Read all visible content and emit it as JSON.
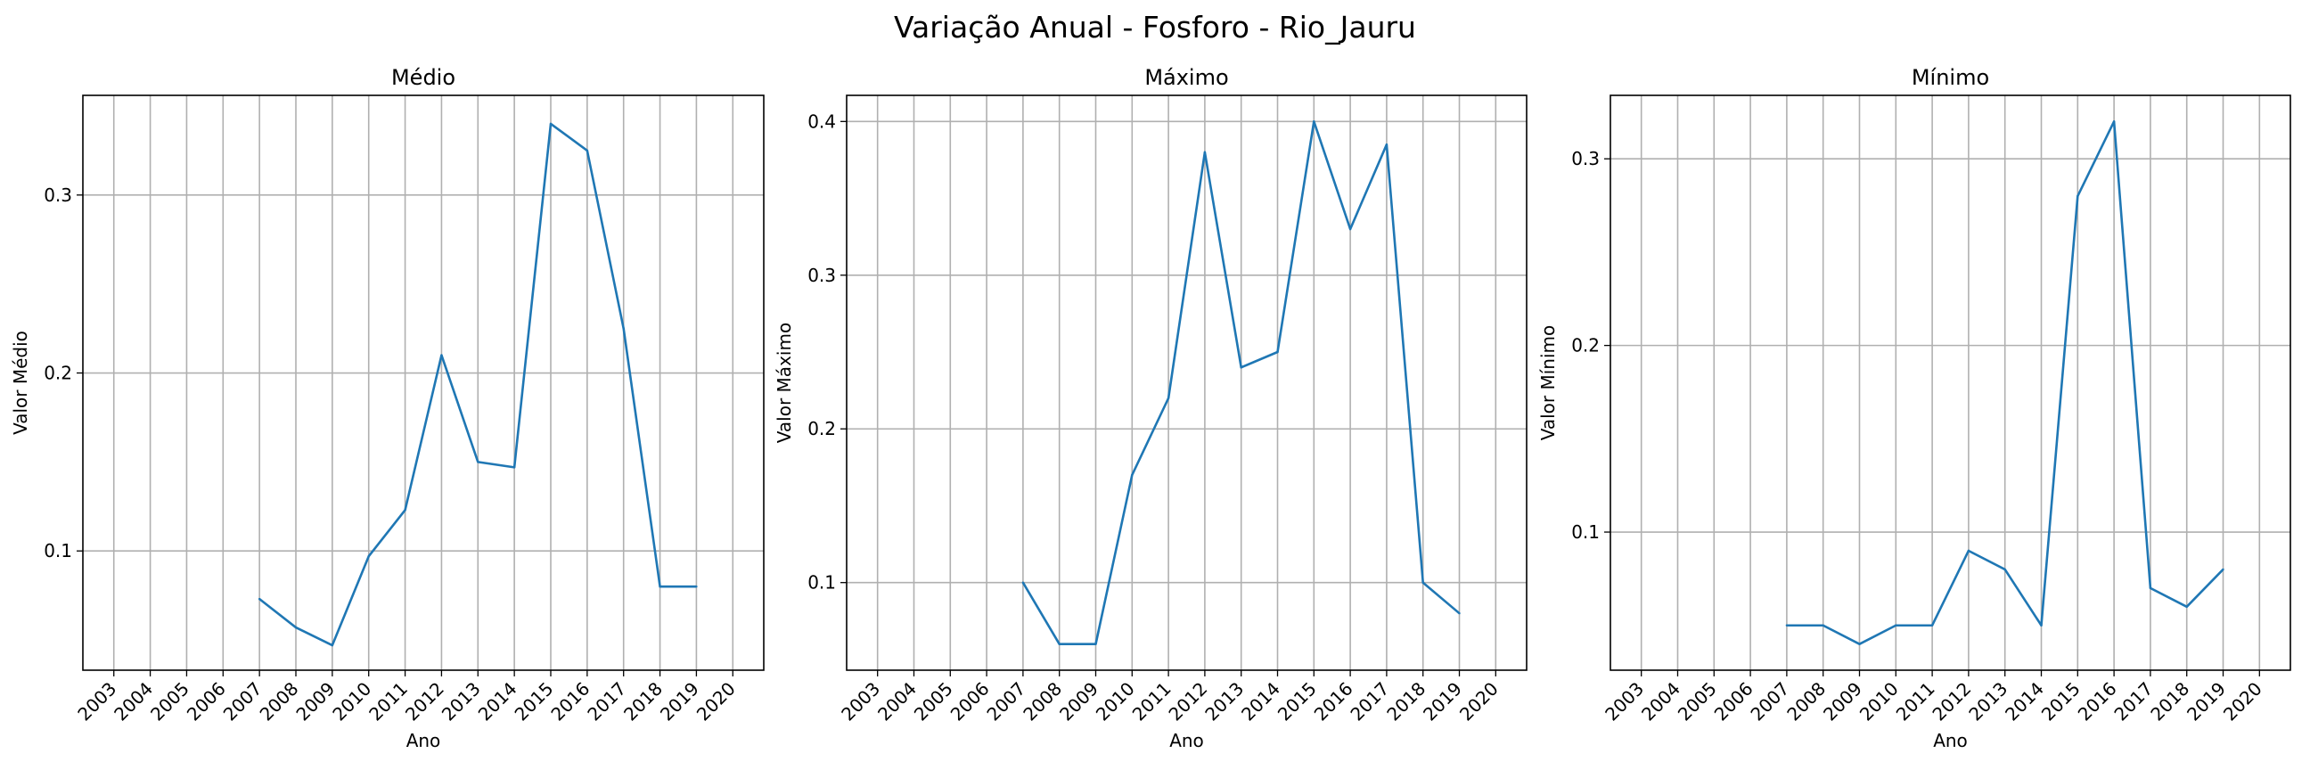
{
  "figure": {
    "suptitle": "Variação Anual - Fosforo - Rio_Jauru"
  },
  "colors": {
    "line": "#1f77b4",
    "grid": "#b0b0b0",
    "axes": "#000000"
  },
  "chart_data": [
    {
      "type": "line",
      "title": "Médio",
      "xlabel": "Ano",
      "ylabel": "Valor Médio",
      "grid": true,
      "categories": [
        "2003",
        "2004",
        "2005",
        "2006",
        "2007",
        "2008",
        "2009",
        "2010",
        "2011",
        "2012",
        "2013",
        "2014",
        "2015",
        "2016",
        "2017",
        "2018",
        "2019",
        "2020"
      ],
      "yticks": [
        0.1,
        0.2,
        0.3
      ],
      "ylim": [
        0.033,
        0.356
      ],
      "series": [
        {
          "values": [
            null,
            null,
            null,
            null,
            0.073,
            0.057,
            0.047,
            0.097,
            0.123,
            0.21,
            0.15,
            0.147,
            0.34,
            0.325,
            0.225,
            0.08,
            0.08,
            null
          ]
        }
      ]
    },
    {
      "type": "line",
      "title": "Máximo",
      "xlabel": "Ano",
      "ylabel": "Valor Máximo",
      "grid": true,
      "categories": [
        "2003",
        "2004",
        "2005",
        "2006",
        "2007",
        "2008",
        "2009",
        "2010",
        "2011",
        "2012",
        "2013",
        "2014",
        "2015",
        "2016",
        "2017",
        "2018",
        "2019",
        "2020"
      ],
      "yticks": [
        0.1,
        0.2,
        0.3,
        0.4
      ],
      "ylim": [
        0.043,
        0.417
      ],
      "series": [
        {
          "values": [
            null,
            null,
            null,
            null,
            0.1,
            0.06,
            0.06,
            0.17,
            0.22,
            0.38,
            0.24,
            0.25,
            0.4,
            0.33,
            0.385,
            0.1,
            0.08,
            null
          ]
        }
      ]
    },
    {
      "type": "line",
      "title": "Mínimo",
      "xlabel": "Ano",
      "ylabel": "Valor Mínimo",
      "grid": true,
      "categories": [
        "2003",
        "2004",
        "2005",
        "2006",
        "2007",
        "2008",
        "2009",
        "2010",
        "2011",
        "2012",
        "2013",
        "2014",
        "2015",
        "2016",
        "2017",
        "2018",
        "2019",
        "2020"
      ],
      "yticks": [
        0.1,
        0.2,
        0.3
      ],
      "ylim": [
        0.026,
        0.334
      ],
      "series": [
        {
          "values": [
            null,
            null,
            null,
            null,
            0.05,
            0.05,
            0.04,
            0.05,
            0.05,
            0.09,
            0.08,
            0.05,
            0.28,
            0.32,
            0.07,
            0.06,
            0.08,
            null
          ]
        }
      ]
    }
  ]
}
